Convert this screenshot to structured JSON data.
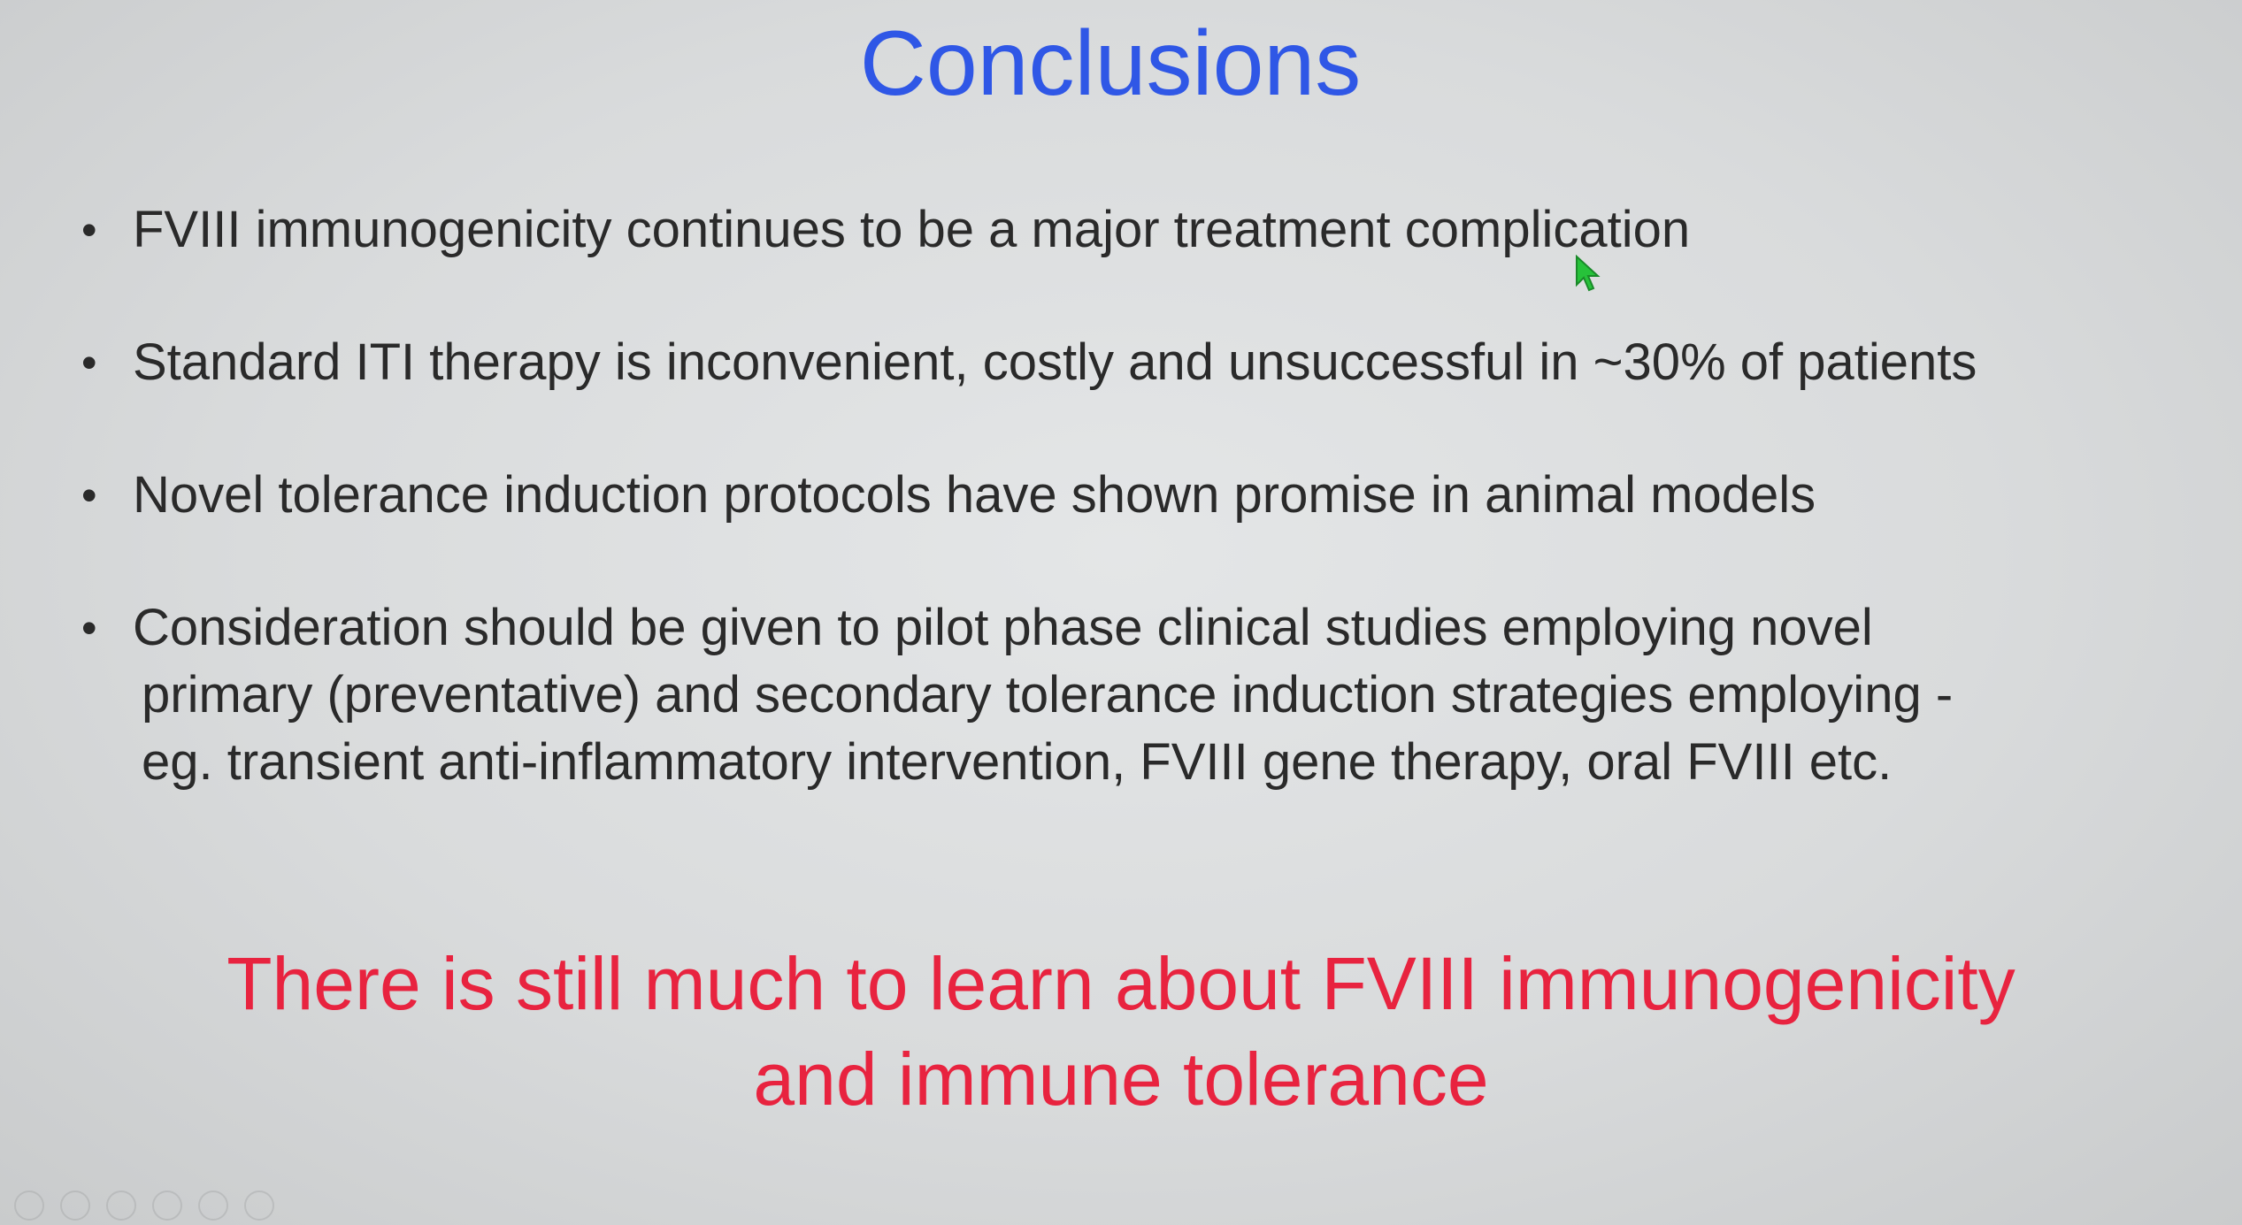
{
  "slide": {
    "title": "Conclusions",
    "bullets": [
      "FVIII immunogenicity continues to be a major treatment complication",
      "Standard ITI therapy is inconvenient, costly and unsuccessful in ~30% of patients",
      "Novel tolerance induction protocols have shown promise in animal models"
    ],
    "multiline_bullet": {
      "line1": "Consideration should be given to pilot phase clinical studies employing novel",
      "line2": "primary (preventative) and secondary tolerance induction strategies employing -",
      "line3": "eg. transient anti-inflammatory intervention, FVIII gene therapy, oral FVIII etc."
    },
    "conclusion": {
      "line1": "There is still much to learn about FVIII immunogenicity",
      "line2": "and immune tolerance"
    },
    "bullet_symbol": "•"
  },
  "colors": {
    "title": "#2f57e6",
    "body_text": "#2a2a2a",
    "conclusion": "#e8233f",
    "cursor": "#27c23a"
  },
  "icons": {
    "cursor": "mouse-pointer-icon",
    "controls": [
      "previous-icon",
      "next-icon",
      "pen-icon",
      "slides-icon",
      "zoom-icon",
      "more-icon"
    ]
  }
}
